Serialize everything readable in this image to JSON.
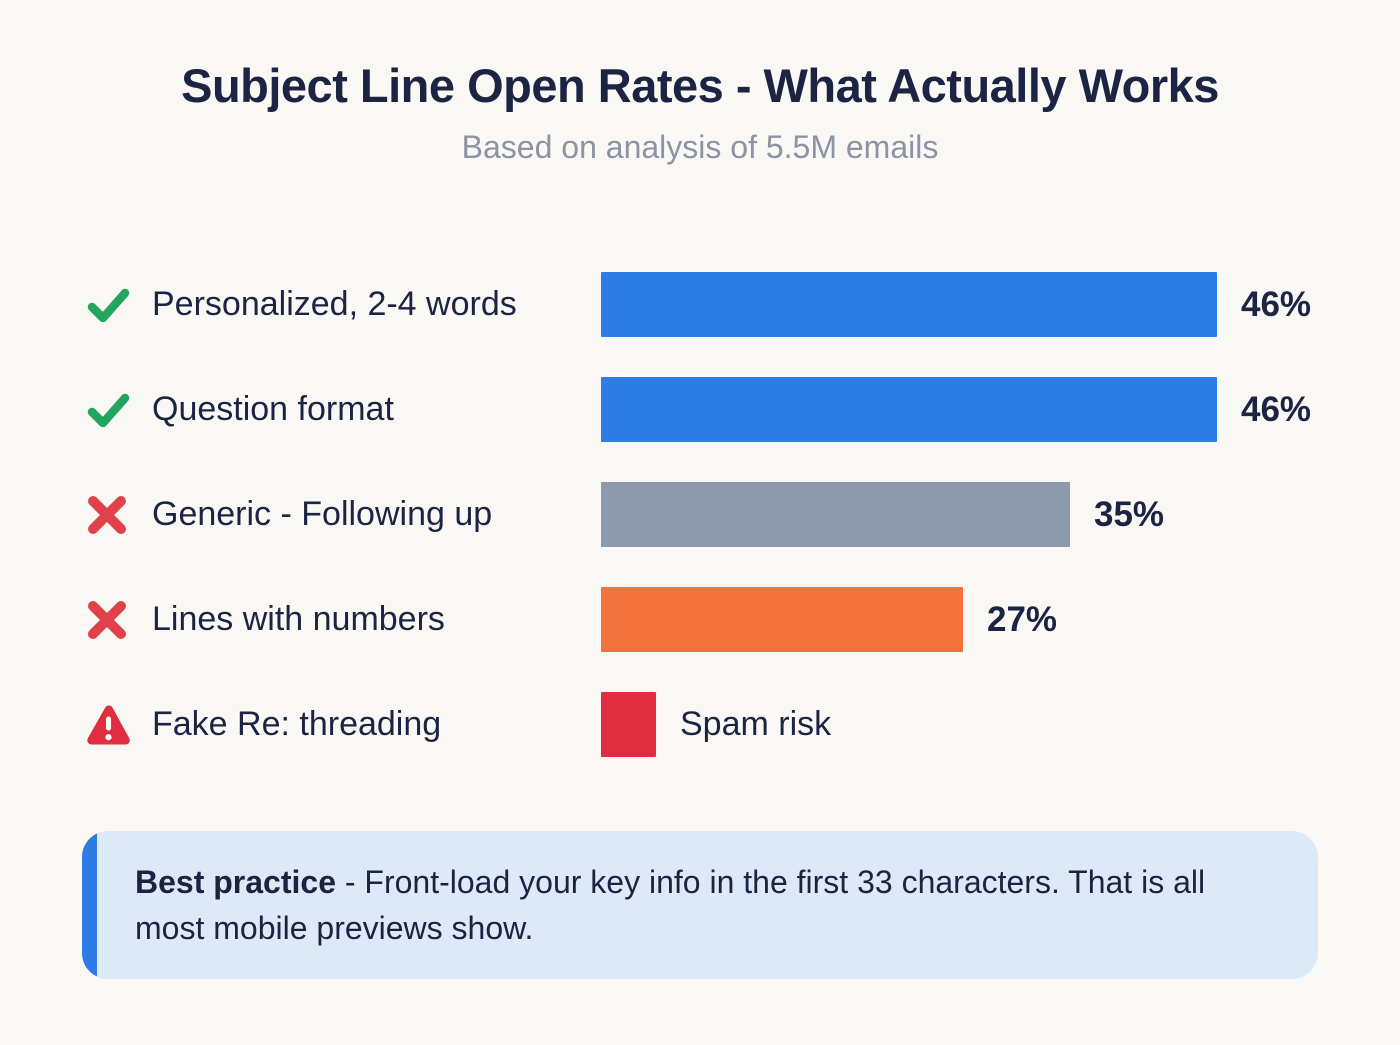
{
  "header": {
    "title": "Subject Line Open Rates - What Actually Works",
    "subtitle": "Based on analysis of 5.5M emails"
  },
  "colors": {
    "background": "#faf8f5",
    "navy_text": "#1b2442",
    "subtitle_gray": "#8b93a4",
    "bar_blue": "#2e7ce5",
    "bar_gray": "#8d9aae",
    "bar_orange": "#f4713e",
    "bar_red": "#e02d3f",
    "icon_green": "#22a55e",
    "icon_red": "#e0414b",
    "callout_bg": "#dce9f8",
    "callout_accent": "#2e7ce5"
  },
  "chart_data": {
    "type": "bar",
    "orientation": "horizontal",
    "title": "Subject Line Open Rates - What Actually Works",
    "subtitle": "Based on analysis of 5.5M emails",
    "unit": "%",
    "xlim": [
      0,
      46
    ],
    "grid": false,
    "legend": false,
    "categories": [
      "Personalized, 2-4 words",
      "Question format",
      "Generic - Following up",
      "Lines with numbers",
      "Fake Re: threading"
    ],
    "values": [
      46,
      46,
      35,
      27,
      null
    ],
    "rows": [
      {
        "icon": "check-icon",
        "label": "Personalized, 2-4 words",
        "value": 46,
        "value_label": "46%",
        "color": "#2e7ce5",
        "annotation": false
      },
      {
        "icon": "check-icon",
        "label": "Question format",
        "value": 46,
        "value_label": "46%",
        "color": "#2e7ce5",
        "annotation": false
      },
      {
        "icon": "cross-icon",
        "label": "Generic - Following up",
        "value": 35,
        "value_label": "35%",
        "color": "#8d9aae",
        "annotation": false
      },
      {
        "icon": "cross-icon",
        "label": "Lines with numbers",
        "value": 27,
        "value_label": "27%",
        "color": "#f4713e",
        "annotation": false
      },
      {
        "icon": "warning-icon",
        "label": "Fake Re: threading",
        "value": null,
        "value_label": "Spam risk",
        "color": "#e02d3f",
        "annotation": true
      }
    ]
  },
  "callout": {
    "lead": "Best practice",
    "text": " - Front-load your key info in the first 33 characters. That is all most mobile previews show."
  }
}
